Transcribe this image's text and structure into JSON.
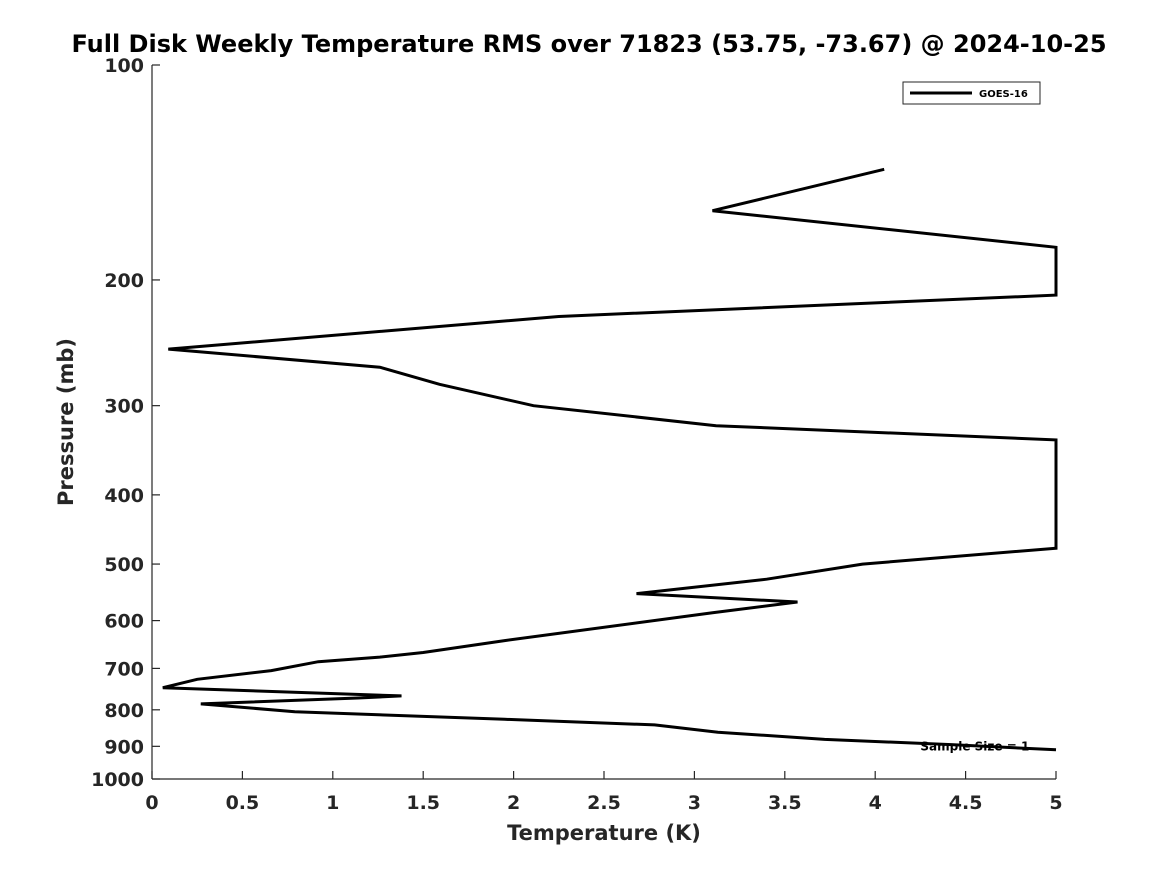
{
  "chart_data": {
    "type": "line",
    "title": "Full Disk Weekly Temperature RMS over 71823 (53.75, -73.67) @ 2024-10-25",
    "xlabel": "Temperature (K)",
    "ylabel": "Pressure (mb)",
    "xlim": [
      0,
      5
    ],
    "ylim": [
      100,
      1000
    ],
    "y_scale": "log",
    "y_direction": "reversed",
    "grid": false,
    "legend_position": "top-right",
    "x_ticks": [
      0,
      0.5,
      1,
      1.5,
      2,
      2.5,
      3,
      3.5,
      4,
      4.5,
      5
    ],
    "x_tick_labels": [
      "0",
      "0.5",
      "1",
      "1.5",
      "2",
      "2.5",
      "3",
      "3.5",
      "4",
      "4.5",
      "5"
    ],
    "y_ticks": [
      100,
      200,
      300,
      400,
      500,
      600,
      700,
      800,
      900,
      1000
    ],
    "y_tick_labels": [
      "100",
      "200",
      "300",
      "400",
      "500",
      "600",
      "700",
      "800",
      "900",
      "1000"
    ],
    "series": [
      {
        "name": "GOES-16",
        "color": "#000000",
        "points": [
          {
            "x": 4.05,
            "y": 140
          },
          {
            "x": 3.1,
            "y": 160
          },
          {
            "x": 5.0,
            "y": 180
          },
          {
            "x": 5.0,
            "y": 210
          },
          {
            "x": 2.25,
            "y": 225
          },
          {
            "x": 0.09,
            "y": 250
          },
          {
            "x": 1.26,
            "y": 265
          },
          {
            "x": 1.59,
            "y": 280
          },
          {
            "x": 2.11,
            "y": 300
          },
          {
            "x": 3.12,
            "y": 320
          },
          {
            "x": 5.0,
            "y": 335
          },
          {
            "x": 5.0,
            "y": 475
          },
          {
            "x": 3.93,
            "y": 500
          },
          {
            "x": 3.4,
            "y": 525
          },
          {
            "x": 2.68,
            "y": 550
          },
          {
            "x": 3.57,
            "y": 565
          },
          {
            "x": 3.1,
            "y": 585
          },
          {
            "x": 1.95,
            "y": 640
          },
          {
            "x": 1.5,
            "y": 665
          },
          {
            "x": 1.26,
            "y": 675
          },
          {
            "x": 0.92,
            "y": 685
          },
          {
            "x": 0.66,
            "y": 705
          },
          {
            "x": 0.25,
            "y": 725
          },
          {
            "x": 0.06,
            "y": 745
          },
          {
            "x": 1.38,
            "y": 765
          },
          {
            "x": 1.14,
            "y": 770
          },
          {
            "x": 0.27,
            "y": 785
          },
          {
            "x": 0.79,
            "y": 805
          },
          {
            "x": 1.95,
            "y": 825
          },
          {
            "x": 2.78,
            "y": 840
          },
          {
            "x": 3.13,
            "y": 860
          },
          {
            "x": 3.72,
            "y": 880
          },
          {
            "x": 4.42,
            "y": 895
          },
          {
            "x": 5.0,
            "y": 910
          }
        ]
      }
    ],
    "annotations": [
      {
        "text": "Sample Size = 1",
        "x": 4.25,
        "y": 900
      }
    ]
  }
}
